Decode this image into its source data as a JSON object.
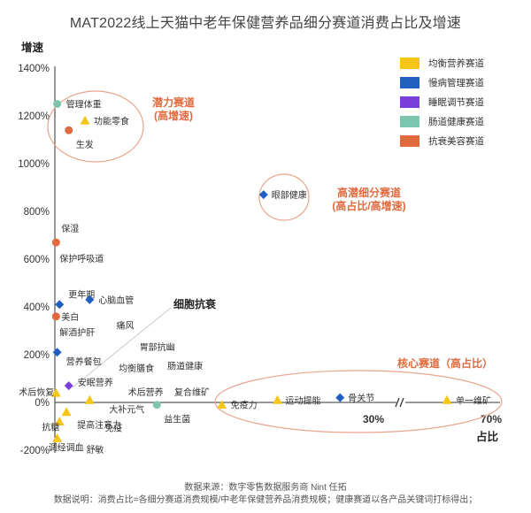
{
  "title": "MAT2022线上天猫中老年保健营养品细分赛道消费占比及增速",
  "footer": {
    "source": "数据来源：数字零售数据服务商 Nint 任拓",
    "note": "数据说明：消费占比=各细分赛道消费规模/中老年保健营养品消费规模；健康赛道以各产品关键词打标得出；"
  },
  "annotations": {
    "growth_title": "潜力赛道",
    "growth_sub": "(高增速)",
    "potential_title": "高潜细分赛道",
    "potential_sub": "(高占比/高增速)",
    "core": "核心赛道（高占比）",
    "cell": "细胞抗衰"
  },
  "chart_data": {
    "type": "scatter",
    "title": "MAT2022线上天猫中老年保健营养品细分赛道消费占比及增速",
    "ylabel": "增速",
    "xlabel": "占比",
    "yticks": [
      "1400%",
      "1200%",
      "1000%",
      "800%",
      "600%",
      "400%",
      "200%",
      "0%",
      "-200%"
    ],
    "ylim": [
      -200,
      1400
    ],
    "xbreak_labels": [
      "30%",
      "70%"
    ],
    "legend": [
      {
        "name": "均衡营养赛道",
        "color": "#F5C518",
        "marker": "triangle"
      },
      {
        "name": "慢病管理赛道",
        "color": "#1F5FBF",
        "marker": "diamond"
      },
      {
        "name": "睡眠调节赛道",
        "color": "#7B3FD9",
        "marker": "diamond"
      },
      {
        "name": "肠道健康赛道",
        "color": "#7CC6B0",
        "marker": "circle"
      },
      {
        "name": "抗衰美容赛道",
        "color": "#E06A3D",
        "marker": "circle"
      }
    ],
    "points": [
      {
        "label": "管理体重",
        "series": "肠道健康赛道",
        "x": 0.1,
        "y": 1250
      },
      {
        "label": "功能零食",
        "series": "均衡营养赛道",
        "x": 1.3,
        "y": 1180
      },
      {
        "label": "生发",
        "series": "抗衰美容赛道",
        "x": 0.6,
        "y": 1140
      },
      {
        "label": "眼部健康",
        "series": "慢病管理赛道",
        "x": 9.0,
        "y": 870
      },
      {
        "label": "保湿",
        "series": "抗衰美容赛道",
        "x": 0.05,
        "y": 670
      },
      {
        "label": "保护呼吸道",
        "series": "",
        "x": 0.05,
        "y": 600
      },
      {
        "label": "更年期",
        "series": "慢病管理赛道",
        "x": 0.2,
        "y": 410
      },
      {
        "label": "心脑血管",
        "series": "慢病管理赛道",
        "x": 1.5,
        "y": 430
      },
      {
        "label": "美白",
        "series": "抗衰美容赛道",
        "x": 0.05,
        "y": 360
      },
      {
        "label": "解酒护肝",
        "series": "",
        "x": 0.05,
        "y": 290
      },
      {
        "label": "痛风",
        "series": "",
        "x": 2.5,
        "y": 320
      },
      {
        "label": "营养餐包",
        "series": "慢病管理赛道",
        "x": 0.1,
        "y": 210
      },
      {
        "label": "胃部抗幽",
        "series": "",
        "x": 3.5,
        "y": 230
      },
      {
        "label": "均衡膳食",
        "series": "",
        "x": 2.6,
        "y": 140
      },
      {
        "label": "肠道健康",
        "series": "",
        "x": 4.7,
        "y": 150
      },
      {
        "label": "安眠营养",
        "series": "睡眠调节赛道",
        "x": 0.6,
        "y": 70
      },
      {
        "label": "术后营养",
        "series": "",
        "x": 3.0,
        "y": 40
      },
      {
        "label": "复合维矿",
        "series": "",
        "x": 5.0,
        "y": 40
      },
      {
        "label": "术后恢复",
        "series": "均衡营养赛道",
        "x": 0.05,
        "y": 40
      },
      {
        "label": "大补元气",
        "series": "均衡营养赛道",
        "x": 1.5,
        "y": 10
      },
      {
        "label": "益生菌",
        "series": "肠道健康赛道",
        "x": 4.4,
        "y": -10
      },
      {
        "label": "提高注意力",
        "series": "均衡营养赛道",
        "x": 0.5,
        "y": -40
      },
      {
        "label": "抗糖",
        "series": "均衡营养赛道",
        "x": 0.2,
        "y": -80
      },
      {
        "label": "免疫",
        "series": "",
        "x": 2.0,
        "y": -110
      },
      {
        "label": "调经调血",
        "series": "均衡营养赛道",
        "x": 0.1,
        "y": -150
      },
      {
        "label": "舒敏",
        "series": "",
        "x": 1.2,
        "y": -200
      },
      {
        "label": "免疫力",
        "series": "均衡营养赛道",
        "x": 7.2,
        "y": -10
      },
      {
        "label": "运动提能",
        "series": "均衡营养赛道",
        "x": 9.6,
        "y": 10
      },
      {
        "label": "骨关节",
        "series": "慢病管理赛道",
        "x": 12.3,
        "y": 20
      },
      {
        "label": "单一维矿",
        "series": "均衡营养赛道",
        "x": 70,
        "y": 10
      }
    ]
  }
}
